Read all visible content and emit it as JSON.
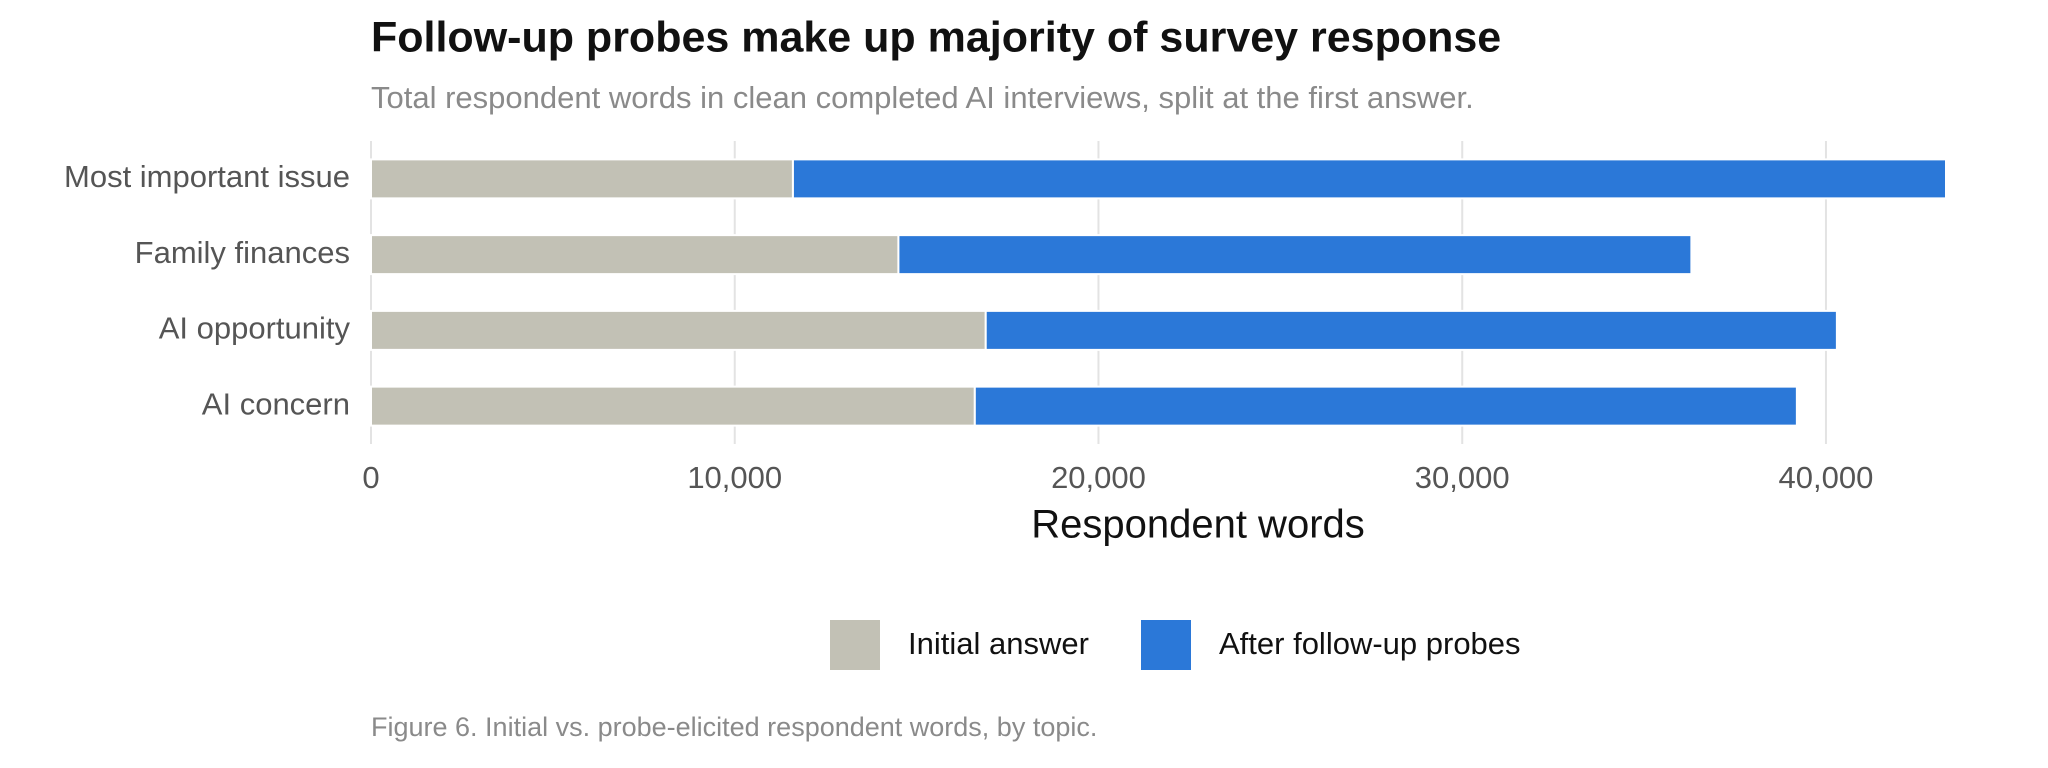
{
  "chart_data": {
    "type": "stacked_barh",
    "title": "Follow-up probes make up majority of survey response",
    "subtitle": "Total respondent words in clean completed AI interviews, split at the first answer.",
    "x_label": "Respondent words",
    "caption": "Figure 6. Initial vs. probe-elicited respondent words, by topic.",
    "categories": [
      "Most important issue",
      "Family finances",
      "AI opportunity",
      "AI concern"
    ],
    "series": [
      {
        "name": "Initial answer",
        "color": "#c2c1b5",
        "values": [
          11600,
          14500,
          16900,
          16600
        ]
      },
      {
        "name": "After follow-up probes",
        "color": "#2b78d8",
        "values": [
          31700,
          21800,
          23400,
          22600
        ]
      }
    ],
    "xlim": [
      0,
      43300
    ],
    "xticks": [
      0,
      {
        "value": 10000,
        "label": "10,000"
      },
      {
        "value": 20000,
        "label": "20,000"
      },
      {
        "value": 30000,
        "label": "30,000"
      },
      {
        "value": 40000,
        "label": "40,000"
      }
    ],
    "grid": true,
    "legend": "bottom"
  }
}
